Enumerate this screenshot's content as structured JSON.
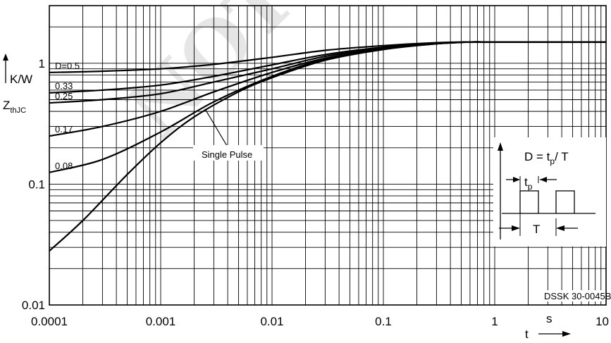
{
  "chart_data": {
    "type": "line",
    "title": "",
    "xscale": "log",
    "yscale": "log",
    "xlim": [
      0.0001,
      10
    ],
    "ylim": [
      0.01,
      3
    ],
    "grid": true,
    "x_ticks": [
      "0.0001",
      "0.001",
      "0.01",
      "0.1",
      "1",
      "10"
    ],
    "y_ticks": [
      "0.01",
      "0.1",
      "1"
    ],
    "xlabel": "t",
    "xunit": "s",
    "ylabel_main": "Z",
    "ylabel_sub": "thJC",
    "yunit": "K/W",
    "series": [
      {
        "name": "D=0.5",
        "x": [
          0.0001,
          0.0003,
          0.001,
          0.003,
          0.01,
          0.03,
          0.1,
          0.3,
          0.6,
          1,
          10
        ],
        "y": [
          0.84,
          0.86,
          0.9,
          0.98,
          1.12,
          1.28,
          1.4,
          1.48,
          1.5,
          1.5,
          1.5
        ]
      },
      {
        "name": "0.33",
        "x": [
          0.0001,
          0.0003,
          0.001,
          0.003,
          0.01,
          0.03,
          0.1,
          0.3,
          0.6,
          1,
          10
        ],
        "y": [
          0.57,
          0.6,
          0.66,
          0.78,
          0.97,
          1.18,
          1.36,
          1.47,
          1.5,
          1.5,
          1.5
        ]
      },
      {
        "name": "0.25",
        "x": [
          0.0001,
          0.0003,
          0.001,
          0.003,
          0.01,
          0.03,
          0.1,
          0.3,
          0.6,
          1,
          10
        ],
        "y": [
          0.47,
          0.5,
          0.56,
          0.7,
          0.9,
          1.14,
          1.34,
          1.46,
          1.5,
          1.5,
          1.5
        ]
      },
      {
        "name": "0.17",
        "x": [
          0.0001,
          0.0003,
          0.001,
          0.003,
          0.01,
          0.03,
          0.1,
          0.3,
          0.6,
          1,
          10
        ],
        "y": [
          0.25,
          0.3,
          0.4,
          0.58,
          0.84,
          1.1,
          1.32,
          1.45,
          1.5,
          1.5,
          1.5
        ]
      },
      {
        "name": "0.08",
        "x": [
          0.0001,
          0.0003,
          0.001,
          0.003,
          0.01,
          0.03,
          0.1,
          0.3,
          0.6,
          1,
          10
        ],
        "y": [
          0.125,
          0.16,
          0.27,
          0.48,
          0.78,
          1.08,
          1.31,
          1.45,
          1.5,
          1.5,
          1.5
        ]
      },
      {
        "name": "Single Pulse",
        "x": [
          0.0001,
          0.0002,
          0.0005,
          0.001,
          0.002,
          0.005,
          0.01,
          0.03,
          0.1,
          0.3,
          0.6,
          1,
          10
        ],
        "y": [
          0.028,
          0.05,
          0.12,
          0.22,
          0.36,
          0.58,
          0.76,
          1.06,
          1.3,
          1.45,
          1.5,
          1.5,
          1.5
        ]
      }
    ],
    "inset": {
      "formula_prefix": "D = t",
      "formula_sub": "p",
      "formula_suffix": "/ T",
      "tp_main": "t",
      "tp_sub": "p",
      "period_label": "T"
    },
    "code": "DSSK 30-0045B",
    "watermark": "NOT"
  }
}
